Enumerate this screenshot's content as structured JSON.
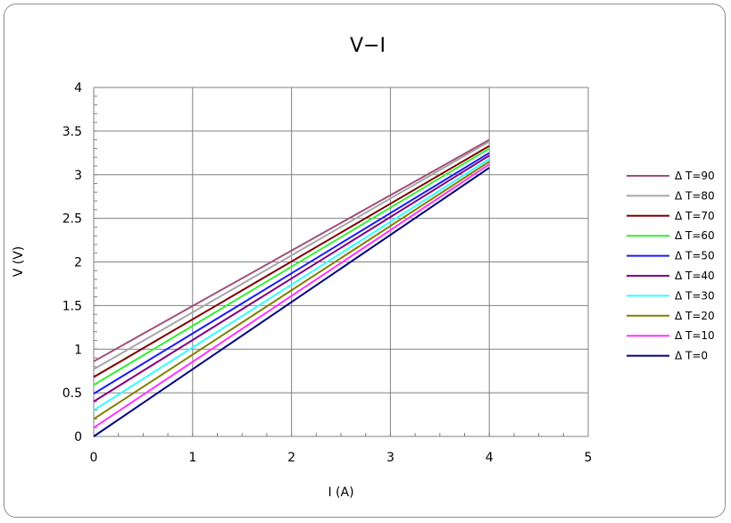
{
  "chart_data": {
    "type": "line",
    "title": "V−I",
    "xlabel": "I (A)",
    "ylabel": "V (V)",
    "xlim": [
      0,
      5
    ],
    "ylim": [
      0,
      4
    ],
    "x_ticks": [
      "0",
      "1",
      "2",
      "3",
      "4",
      "5"
    ],
    "y_ticks": [
      "0",
      "0.5",
      "1",
      "1.5",
      "2",
      "2.5",
      "3",
      "3.5",
      "4"
    ],
    "x_tick_values": [
      0,
      1,
      2,
      3,
      4,
      5
    ],
    "y_tick_values": [
      0,
      0.5,
      1,
      1.5,
      2,
      2.5,
      3,
      3.5,
      4
    ],
    "grid": true,
    "legend_position": "right",
    "series": [
      {
        "name": "Δ T=90",
        "color": "#a0507a",
        "x": [
          0,
          4
        ],
        "y": [
          0.86,
          3.4
        ]
      },
      {
        "name": "Δ T=80",
        "color": "#a6a6a6",
        "x": [
          0,
          4
        ],
        "y": [
          0.77,
          3.38
        ]
      },
      {
        "name": "Δ T=70",
        "color": "#800000",
        "x": [
          0,
          4
        ],
        "y": [
          0.68,
          3.33
        ]
      },
      {
        "name": "Δ T=60",
        "color": "#33ee33",
        "x": [
          0,
          4
        ],
        "y": [
          0.59,
          3.3
        ]
      },
      {
        "name": "Δ T=50",
        "color": "#1a1aff",
        "x": [
          0,
          4
        ],
        "y": [
          0.49,
          3.25
        ]
      },
      {
        "name": "Δ T=40",
        "color": "#800080",
        "x": [
          0,
          4
        ],
        "y": [
          0.4,
          3.22
        ]
      },
      {
        "name": "Δ T=30",
        "color": "#33ffff",
        "x": [
          0,
          4
        ],
        "y": [
          0.3,
          3.18
        ]
      },
      {
        "name": "Δ T=20",
        "color": "#808000",
        "x": [
          0,
          4
        ],
        "y": [
          0.2,
          3.15
        ]
      },
      {
        "name": "Δ T=10",
        "color": "#ff33ff",
        "x": [
          0,
          4
        ],
        "y": [
          0.1,
          3.12
        ]
      },
      {
        "name": "Δ T=0",
        "color": "#000080",
        "x": [
          0,
          4
        ],
        "y": [
          0.0,
          3.08
        ]
      }
    ]
  }
}
